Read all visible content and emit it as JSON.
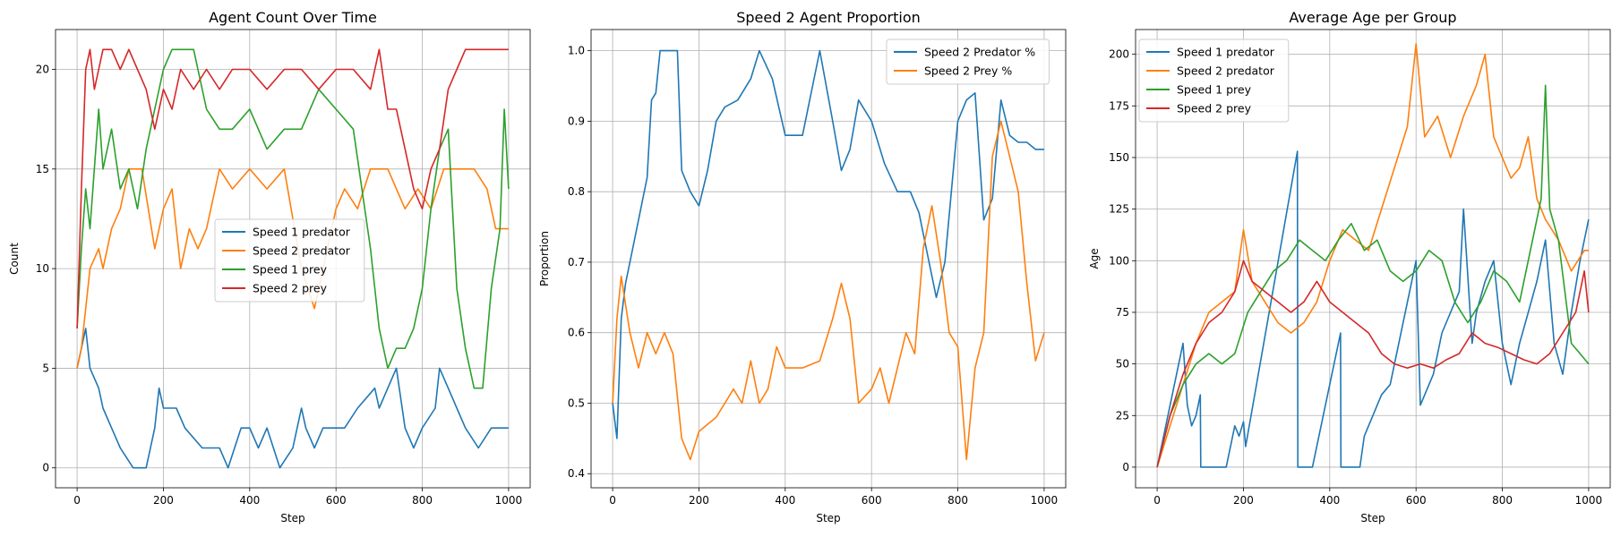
{
  "chart_data": [
    {
      "type": "line",
      "title": "Agent Count Over Time",
      "xlabel": "Step",
      "ylabel": "Count",
      "xlim": [
        -50,
        1050
      ],
      "ylim": [
        -1,
        22
      ],
      "xticks": [
        0,
        200,
        400,
        600,
        800,
        1000
      ],
      "yticks": [
        0,
        5,
        10,
        15,
        20
      ],
      "grid": true,
      "legend": "center-right",
      "series": [
        {
          "name": "Speed 1 predator",
          "color": "#1f77b4",
          "x": [
            0,
            10,
            20,
            30,
            50,
            60,
            80,
            100,
            130,
            160,
            180,
            190,
            200,
            230,
            250,
            290,
            330,
            350,
            380,
            400,
            420,
            440,
            470,
            500,
            510,
            520,
            530,
            550,
            570,
            590,
            620,
            650,
            690,
            700,
            720,
            740,
            760,
            780,
            800,
            830,
            840,
            860,
            880,
            900,
            930,
            960,
            1000
          ],
          "y": [
            5,
            6,
            7,
            5,
            4,
            3,
            2,
            1,
            0,
            0,
            2,
            4,
            3,
            3,
            2,
            1,
            1,
            0,
            2,
            2,
            1,
            2,
            0,
            1,
            2,
            3,
            2,
            1,
            2,
            2,
            2,
            3,
            4,
            3,
            4,
            5,
            2,
            1,
            2,
            3,
            5,
            4,
            3,
            2,
            1,
            2,
            2
          ]
        },
        {
          "name": "Speed 2 predator",
          "color": "#ff7f0e",
          "x": [
            0,
            10,
            20,
            30,
            50,
            60,
            80,
            100,
            120,
            150,
            180,
            200,
            220,
            240,
            260,
            280,
            300,
            330,
            360,
            400,
            440,
            480,
            520,
            550,
            570,
            600,
            620,
            650,
            680,
            720,
            760,
            790,
            820,
            850,
            880,
            920,
            950,
            970,
            1000
          ],
          "y": [
            5,
            6,
            8,
            10,
            11,
            10,
            12,
            13,
            15,
            15,
            11,
            13,
            14,
            10,
            12,
            11,
            12,
            15,
            14,
            15,
            14,
            15,
            10,
            8,
            10,
            13,
            14,
            13,
            15,
            15,
            13,
            14,
            13,
            15,
            15,
            15,
            14,
            12,
            12
          ]
        },
        {
          "name": "Speed 1 prey",
          "color": "#2ca02c",
          "x": [
            0,
            10,
            20,
            30,
            50,
            60,
            80,
            100,
            120,
            140,
            160,
            180,
            200,
            220,
            240,
            270,
            300,
            330,
            360,
            400,
            440,
            480,
            520,
            560,
            600,
            640,
            680,
            700,
            720,
            740,
            760,
            780,
            800,
            820,
            840,
            860,
            880,
            900,
            920,
            940,
            960,
            980,
            990,
            1000
          ],
          "y": [
            7,
            11,
            14,
            12,
            18,
            15,
            17,
            14,
            15,
            13,
            16,
            18,
            20,
            21,
            21,
            21,
            18,
            17,
            17,
            18,
            16,
            17,
            17,
            19,
            18,
            17,
            11,
            7,
            5,
            6,
            6,
            7,
            9,
            13,
            16,
            17,
            9,
            6,
            4,
            4,
            9,
            12,
            18,
            14
          ]
        },
        {
          "name": "Speed 2 prey",
          "color": "#d62728",
          "x": [
            0,
            10,
            20,
            30,
            40,
            50,
            60,
            80,
            100,
            120,
            140,
            160,
            180,
            200,
            220,
            240,
            270,
            300,
            330,
            360,
            400,
            440,
            480,
            520,
            560,
            600,
            640,
            680,
            700,
            720,
            740,
            760,
            780,
            800,
            820,
            840,
            860,
            880,
            900,
            940,
            980,
            1000
          ],
          "y": [
            7,
            14,
            20,
            21,
            19,
            20,
            21,
            21,
            20,
            21,
            20,
            19,
            17,
            19,
            18,
            20,
            19,
            20,
            19,
            20,
            20,
            19,
            20,
            20,
            19,
            20,
            20,
            19,
            21,
            18,
            18,
            16,
            14,
            13,
            15,
            16,
            19,
            20,
            21,
            21,
            21,
            21
          ]
        }
      ]
    },
    {
      "type": "line",
      "title": "Speed 2 Agent Proportion",
      "xlabel": "Step",
      "ylabel": "Proportion",
      "xlim": [
        -50,
        1050
      ],
      "ylim": [
        0.38,
        1.03
      ],
      "xticks": [
        0,
        200,
        400,
        600,
        800,
        1000
      ],
      "yticks": [
        0.4,
        0.5,
        0.6,
        0.7,
        0.8,
        0.9,
        1.0
      ],
      "grid": true,
      "legend": "top-right",
      "series": [
        {
          "name": "Speed 2 Predator %",
          "color": "#1f77b4",
          "x": [
            0,
            10,
            20,
            30,
            40,
            60,
            80,
            90,
            100,
            110,
            130,
            150,
            160,
            180,
            200,
            220,
            240,
            260,
            290,
            320,
            340,
            370,
            400,
            440,
            480,
            510,
            530,
            550,
            570,
            600,
            630,
            660,
            690,
            710,
            730,
            750,
            770,
            800,
            820,
            840,
            860,
            880,
            900,
            920,
            940,
            960,
            980,
            1000
          ],
          "y": [
            0.5,
            0.45,
            0.62,
            0.67,
            0.7,
            0.76,
            0.82,
            0.93,
            0.94,
            1.0,
            1.0,
            1.0,
            0.83,
            0.8,
            0.78,
            0.83,
            0.9,
            0.92,
            0.93,
            0.96,
            1.0,
            0.96,
            0.88,
            0.88,
            1.0,
            0.9,
            0.83,
            0.86,
            0.93,
            0.9,
            0.84,
            0.8,
            0.8,
            0.77,
            0.71,
            0.65,
            0.7,
            0.9,
            0.93,
            0.94,
            0.76,
            0.79,
            0.93,
            0.88,
            0.87,
            0.87,
            0.86,
            0.86
          ]
        },
        {
          "name": "Speed 2 Prey %",
          "color": "#ff7f0e",
          "x": [
            0,
            10,
            20,
            30,
            40,
            60,
            80,
            100,
            120,
            140,
            160,
            180,
            200,
            220,
            240,
            260,
            280,
            300,
            320,
            340,
            360,
            380,
            400,
            440,
            480,
            510,
            530,
            550,
            570,
            600,
            620,
            640,
            660,
            680,
            700,
            720,
            740,
            760,
            780,
            800,
            820,
            840,
            860,
            880,
            900,
            920,
            940,
            960,
            980,
            1000
          ],
          "y": [
            0.5,
            0.62,
            0.68,
            0.64,
            0.6,
            0.55,
            0.6,
            0.57,
            0.6,
            0.57,
            0.45,
            0.42,
            0.46,
            0.47,
            0.48,
            0.5,
            0.52,
            0.5,
            0.56,
            0.5,
            0.52,
            0.58,
            0.55,
            0.55,
            0.56,
            0.62,
            0.67,
            0.62,
            0.5,
            0.52,
            0.55,
            0.5,
            0.55,
            0.6,
            0.57,
            0.72,
            0.78,
            0.7,
            0.6,
            0.58,
            0.42,
            0.55,
            0.6,
            0.85,
            0.9,
            0.85,
            0.8,
            0.67,
            0.56,
            0.6
          ]
        }
      ]
    },
    {
      "type": "line",
      "title": "Average Age per Group",
      "xlabel": "Step",
      "ylabel": "Age",
      "xlim": [
        -50,
        1050
      ],
      "ylim": [
        -10,
        212
      ],
      "xticks": [
        0,
        200,
        400,
        600,
        800,
        1000
      ],
      "yticks": [
        0,
        25,
        50,
        75,
        100,
        125,
        150,
        175,
        200
      ],
      "grid": true,
      "legend": "top-left",
      "series": [
        {
          "name": "Speed 1 predator",
          "color": "#1f77b4",
          "x": [
            0,
            60,
            70,
            80,
            90,
            100,
            101,
            160,
            170,
            180,
            190,
            200,
            205,
            325,
            326,
            360,
            425,
            426,
            470,
            480,
            500,
            520,
            540,
            600,
            610,
            640,
            660,
            700,
            710,
            730,
            740,
            760,
            780,
            800,
            820,
            840,
            860,
            880,
            900,
            920,
            940,
            960,
            980,
            1000
          ],
          "y": [
            0,
            60,
            30,
            20,
            25,
            35,
            0,
            0,
            10,
            20,
            15,
            22,
            10,
            153,
            0,
            0,
            65,
            0,
            0,
            15,
            25,
            35,
            40,
            100,
            30,
            45,
            65,
            85,
            125,
            60,
            75,
            90,
            100,
            60,
            40,
            60,
            75,
            90,
            110,
            60,
            45,
            75,
            100,
            120
          ]
        },
        {
          "name": "Speed 2 predator",
          "color": "#ff7f0e",
          "x": [
            0,
            30,
            60,
            90,
            120,
            150,
            180,
            200,
            220,
            250,
            280,
            310,
            340,
            370,
            400,
            430,
            460,
            490,
            520,
            550,
            580,
            600,
            620,
            650,
            680,
            710,
            740,
            760,
            780,
            800,
            820,
            840,
            860,
            880,
            900,
            930,
            960,
            990,
            1000
          ],
          "y": [
            0,
            20,
            40,
            60,
            75,
            80,
            85,
            115,
            90,
            80,
            70,
            65,
            70,
            80,
            100,
            115,
            110,
            105,
            125,
            145,
            165,
            205,
            160,
            170,
            150,
            170,
            185,
            200,
            160,
            150,
            140,
            145,
            160,
            130,
            120,
            110,
            95,
            105,
            105
          ]
        },
        {
          "name": "Speed 1 prey",
          "color": "#2ca02c",
          "x": [
            0,
            30,
            60,
            90,
            120,
            150,
            180,
            210,
            240,
            270,
            300,
            330,
            360,
            390,
            420,
            450,
            480,
            510,
            540,
            570,
            600,
            630,
            660,
            690,
            720,
            750,
            780,
            810,
            840,
            870,
            890,
            900,
            910,
            930,
            960,
            980,
            1000
          ],
          "y": [
            0,
            25,
            40,
            50,
            55,
            50,
            55,
            75,
            85,
            95,
            100,
            110,
            105,
            100,
            110,
            118,
            105,
            110,
            95,
            90,
            95,
            105,
            100,
            80,
            70,
            80,
            95,
            90,
            80,
            110,
            130,
            185,
            125,
            110,
            60,
            55,
            50
          ]
        },
        {
          "name": "Speed 2 prey",
          "color": "#d62728",
          "x": [
            0,
            30,
            60,
            90,
            120,
            150,
            180,
            200,
            220,
            250,
            280,
            310,
            340,
            370,
            400,
            430,
            460,
            490,
            520,
            550,
            580,
            610,
            640,
            670,
            700,
            730,
            760,
            790,
            820,
            850,
            880,
            910,
            940,
            970,
            990,
            1000
          ],
          "y": [
            0,
            25,
            45,
            60,
            70,
            75,
            85,
            100,
            90,
            85,
            80,
            75,
            80,
            90,
            80,
            75,
            70,
            65,
            55,
            50,
            48,
            50,
            48,
            52,
            55,
            65,
            60,
            58,
            55,
            52,
            50,
            55,
            65,
            75,
            95,
            75
          ]
        }
      ]
    }
  ]
}
